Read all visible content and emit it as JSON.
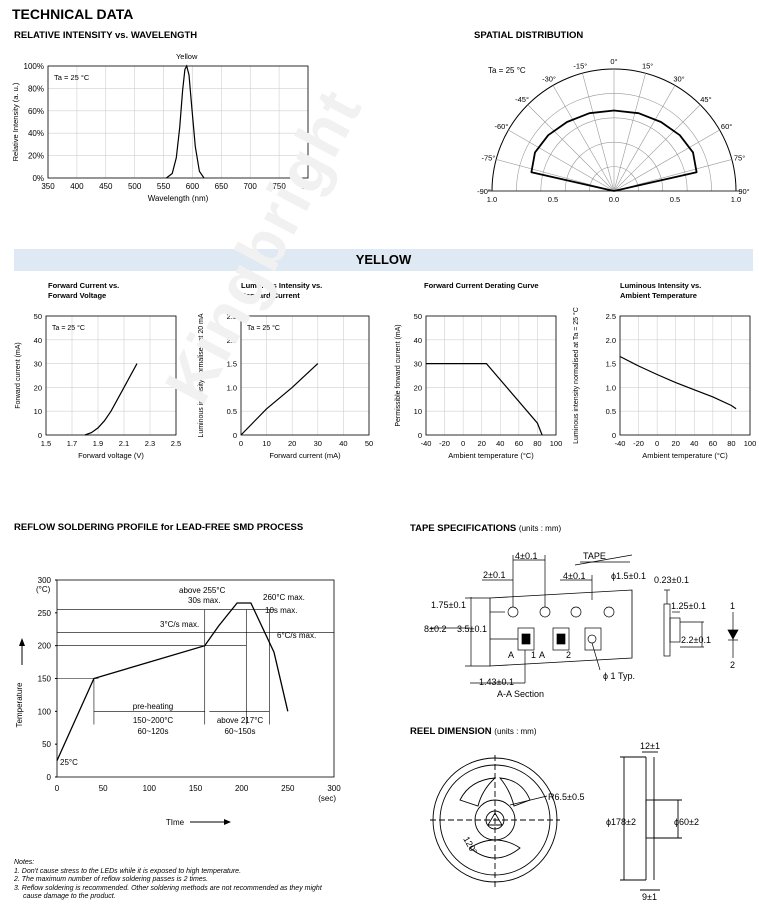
{
  "header": {
    "title": "TECHNICAL DATA"
  },
  "section_rel": {
    "title": "RELATIVE INTENSITY vs. WAVELENGTH"
  },
  "section_spatial": {
    "title": "SPATIAL DISTRIBUTION"
  },
  "band": {
    "title": "YELLOW"
  },
  "reflow": {
    "title": "REFLOW SOLDERING PROFILE for LEAD-FREE SMD PROCESS",
    "ylabel": "Temperature",
    "yunit": "(°C)",
    "xlabel": "TIme",
    "xunit": "(sec)",
    "yticks": [
      "0",
      "50",
      "100",
      "150",
      "200",
      "250",
      "300"
    ],
    "xticks": [
      "0",
      "50",
      "100",
      "150",
      "200",
      "250",
      "300"
    ],
    "annotations": {
      "a255": "above 255°C",
      "a30s": "30s max.",
      "a260": "260°C max.",
      "a10s": "10s max.",
      "a3c": "3°C/s max.",
      "a6c": "6°C/s max.",
      "preheat": "pre-heating",
      "p150": "150~200°C",
      "p60": "60~120s",
      "a217": "above 217°C",
      "a60b": "60~150s",
      "a25": "25°C"
    }
  },
  "tape": {
    "title": "TAPE SPECIFICATIONS",
    "units": "(units : mm)",
    "labels": {
      "d4a": "4±0.1",
      "d2": "2±0.1",
      "tape": "TAPE",
      "d4b": "4±0.1",
      "d15": "ϕ1.5±0.1",
      "d023": "0.23±0.1",
      "d175": "1.75±0.1",
      "d125": "1.25±0.1",
      "d8": "8±0.2",
      "d35": "3.5±0.1",
      "d22": "2.2±0.1",
      "d143": "1.43±0.1",
      "aa": "A-A Section",
      "d1typ": "ϕ 1 Typ.",
      "a1": "A",
      "a2": "A",
      "n1": "1",
      "n2": "2",
      "n1b": "1",
      "n2b": "2"
    }
  },
  "reel": {
    "title": "REEL DIMENSION",
    "units": "(units : mm)",
    "labels": {
      "r65": "R6.5±0.5",
      "d12": "12±1",
      "d178": "ϕ178±2",
      "d60": "ϕ60±2",
      "d9": "9±1",
      "deg120": "120°"
    }
  },
  "notes": {
    "title": "Notes:",
    "items": [
      "1. Don't cause stress to the LEDs while it is exposed to high temperature.",
      "2. The maximum number of reflow soldering passes is 2 times.",
      "3. Reflow soldering is recommended. Other soldering methods are not recommended as they might",
      "    cause damage to the product."
    ]
  },
  "watermark": "Kingbright",
  "chart_data": [
    {
      "type": "line",
      "title": "RELATIVE INTENSITY vs. WAVELENGTH",
      "xlabel": "Wavelength (nm)",
      "ylabel": "Relative Intensity (a. u.)",
      "condition": "Ta = 25 °C",
      "series_label": "Yellow",
      "xlim": [
        350,
        800
      ],
      "ylim": [
        0,
        100
      ],
      "xticks": [
        "350",
        "400",
        "450",
        "500",
        "550",
        "600",
        "650",
        "700",
        "750",
        "800"
      ],
      "yticks": [
        "0%",
        "20%",
        "40%",
        "60%",
        "80%",
        "100%"
      ],
      "series": [
        {
          "x": [
            555,
            565,
            572,
            578,
            583,
            587,
            590,
            594,
            599,
            605,
            612,
            620
          ],
          "y": [
            0,
            4,
            18,
            45,
            78,
            97,
            100,
            92,
            62,
            28,
            6,
            0
          ]
        }
      ]
    },
    {
      "type": "line",
      "title": "SPATIAL DISTRIBUTION",
      "condition": "Ta = 25 °C",
      "angles": [
        "0°",
        "15°",
        "30°",
        "45°",
        "60°",
        "75°",
        "90°",
        "-15°",
        "-30°",
        "-45°",
        "-60°",
        "-75°",
        "-90°"
      ],
      "radial_ticks": [
        "1.0",
        "0.5",
        "0.0",
        "0.5",
        "1.0"
      ],
      "series": [
        {
          "angle": [
            -90,
            -75,
            -60,
            -45,
            -30,
            -15,
            0,
            15,
            30,
            45,
            60,
            75,
            90
          ],
          "r": [
            0,
            0.9,
            0.96,
            0.98,
            0.99,
            1.0,
            1.0,
            1.0,
            0.99,
            0.98,
            0.96,
            0.9,
            0
          ]
        }
      ]
    },
    {
      "type": "line",
      "title": "Forward Current vs. Forward Voltage",
      "xlabel": "Forward voltage (V)",
      "ylabel": "Forward current (mA)",
      "condition": "Ta = 25 °C",
      "xlim": [
        1.5,
        2.5
      ],
      "ylim": [
        0,
        50
      ],
      "xticks": [
        "1.5",
        "1.7",
        "1.9",
        "2.1",
        "2.3",
        "2.5"
      ],
      "yticks": [
        "0",
        "10",
        "20",
        "30",
        "40",
        "50"
      ],
      "series": [
        {
          "x": [
            1.8,
            1.85,
            1.9,
            1.95,
            2.0,
            2.05,
            2.1,
            2.2
          ],
          "y": [
            0,
            1,
            3,
            6,
            10,
            15,
            20,
            30
          ]
        }
      ]
    },
    {
      "type": "line",
      "title": "Luminous Intensity vs. Forward Current",
      "xlabel": "Forward current (mA)",
      "ylabel": "Luminous intensity normalised at 20 mA",
      "condition": "Ta = 25 °C",
      "xlim": [
        0,
        50
      ],
      "ylim": [
        0,
        2.5
      ],
      "xticks": [
        "0",
        "10",
        "20",
        "30",
        "40",
        "50"
      ],
      "yticks": [
        "0",
        "0.5",
        "1.0",
        "1.5",
        "2.0",
        "2.5"
      ],
      "series": [
        {
          "x": [
            0,
            10,
            20,
            30
          ],
          "y": [
            0,
            0.55,
            1.0,
            1.5
          ]
        }
      ]
    },
    {
      "type": "line",
      "title": "Forward Current Derating Curve",
      "xlabel": "Ambient temperature (°C)",
      "ylabel": "Permissible forward current (mA)",
      "xlim": [
        -40,
        100
      ],
      "ylim": [
        0,
        50
      ],
      "xticks": [
        "-40",
        "-20",
        "0",
        "20",
        "40",
        "60",
        "80",
        "100"
      ],
      "yticks": [
        "0",
        "10",
        "20",
        "30",
        "40",
        "50"
      ],
      "series": [
        {
          "x": [
            -40,
            25,
            80,
            85
          ],
          "y": [
            30,
            30,
            5,
            0
          ]
        }
      ]
    },
    {
      "type": "line",
      "title": "Luminous Intensity vs. Ambient Temperature",
      "xlabel": "Ambient temperature (°C)",
      "ylabel": "Luminous intensity normalised at Ta = 25 °C",
      "xlim": [
        -40,
        100
      ],
      "ylim": [
        0,
        2.5
      ],
      "xticks": [
        "-40",
        "-20",
        "0",
        "20",
        "40",
        "60",
        "80",
        "100"
      ],
      "yticks": [
        "0",
        "0.5",
        "1.0",
        "1.5",
        "2.0",
        "2.5"
      ],
      "series": [
        {
          "x": [
            -40,
            -20,
            0,
            20,
            40,
            60,
            80,
            85
          ],
          "y": [
            1.65,
            1.45,
            1.27,
            1.1,
            0.95,
            0.8,
            0.62,
            0.55
          ]
        }
      ]
    }
  ]
}
